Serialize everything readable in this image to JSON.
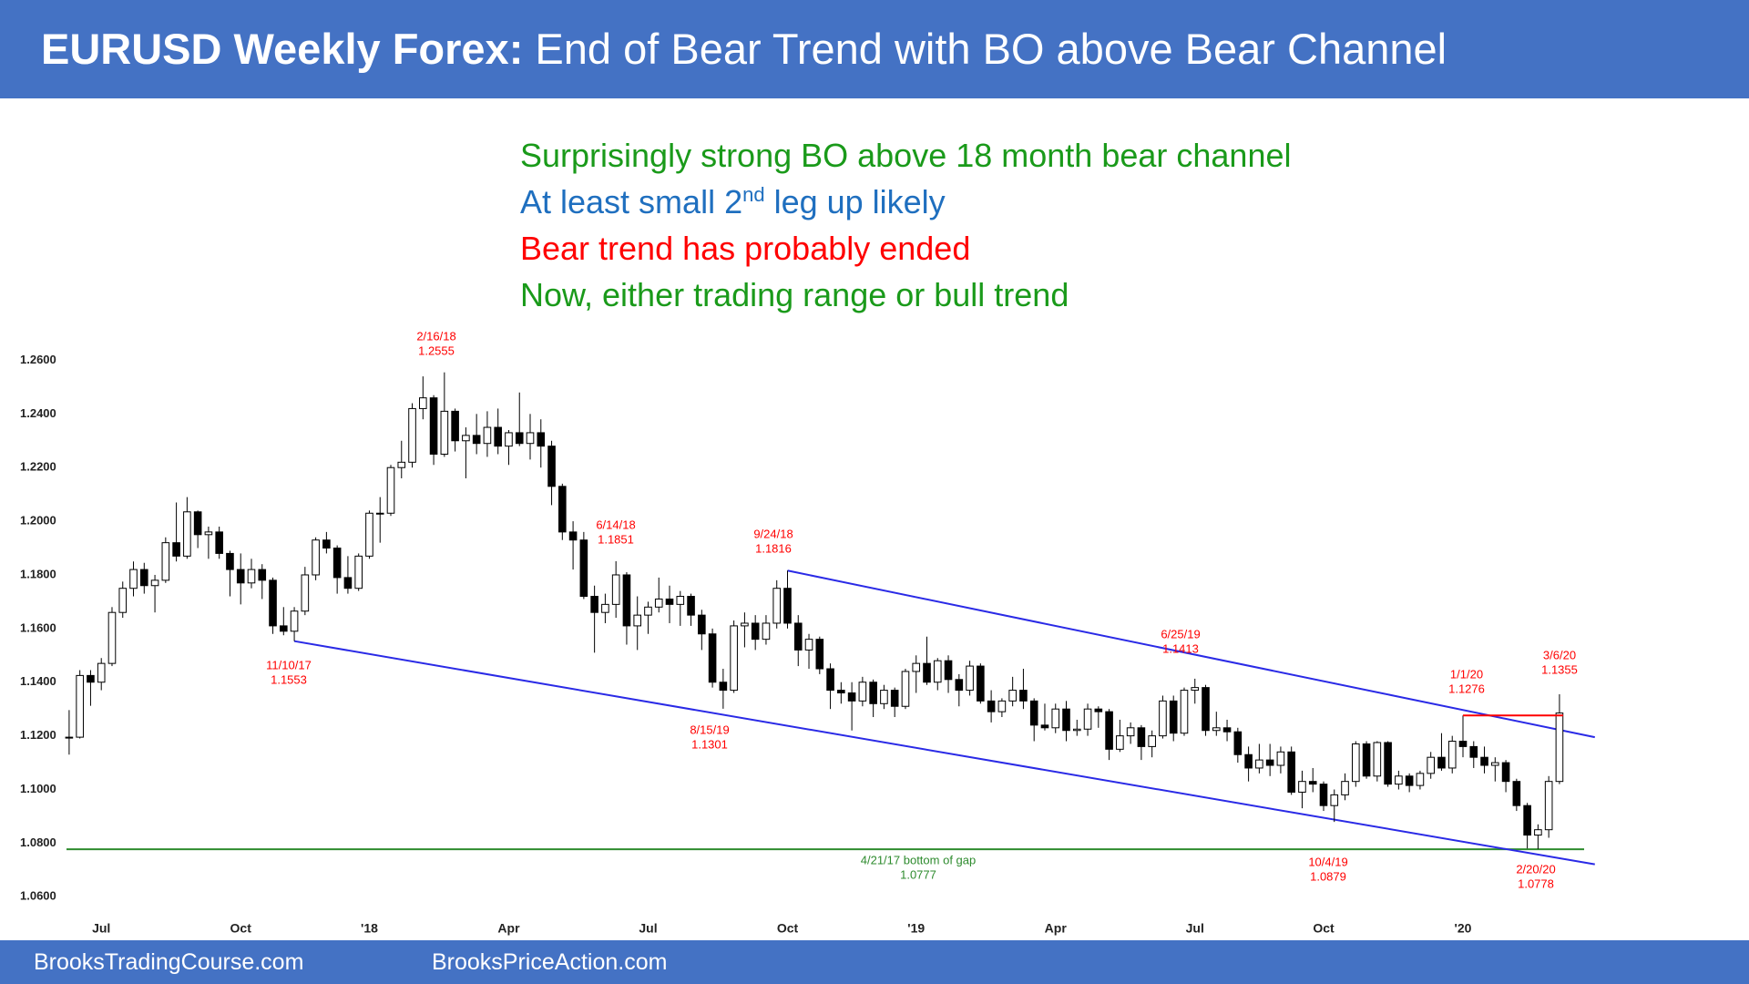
{
  "header": {
    "title_bold": "EURUSD Weekly Forex:",
    "title_rest": "End of Bear Trend with BO above Bear Channel"
  },
  "commentary": [
    {
      "parts": [
        "Surprisingly strong BO above 18 month bear channel"
      ],
      "color": "#1a9a1a"
    },
    {
      "parts": [
        "At least small 2",
        "nd",
        " leg up likely"
      ],
      "color": "#1f6fbf"
    },
    {
      "parts": [
        "Bear trend has probably ended"
      ],
      "color": "#ff0000"
    },
    {
      "parts": [
        "Now, either trading range or bull trend"
      ],
      "color": "#1a9a1a"
    }
  ],
  "chart_data": {
    "type": "candlestick",
    "categories": [
      null,
      null,
      null,
      "Jul",
      null,
      null,
      null,
      null,
      null,
      null,
      null,
      null,
      null,
      null,
      null,
      null,
      "Oct",
      null,
      null,
      null,
      null,
      null,
      null,
      null,
      null,
      null,
      null,
      null,
      "'18",
      null,
      null,
      null,
      null,
      null,
      null,
      null,
      null,
      null,
      null,
      null,
      null,
      "Apr",
      null,
      null,
      null,
      null,
      null,
      null,
      null,
      null,
      null,
      null,
      null,
      null,
      "Jul",
      null,
      null,
      null,
      null,
      null,
      null,
      null,
      null,
      null,
      null,
      null,
      null,
      "Oct",
      null,
      null,
      null,
      null,
      null,
      null,
      null,
      null,
      null,
      null,
      null,
      "'19",
      null,
      null,
      null,
      null,
      null,
      null,
      null,
      null,
      null,
      null,
      null,
      null,
      "Apr",
      null,
      null,
      null,
      null,
      null,
      null,
      null,
      null,
      null,
      null,
      null,
      null,
      "Jul",
      null,
      null,
      null,
      null,
      null,
      null,
      null,
      null,
      null,
      null,
      null,
      "Oct",
      null,
      null,
      null,
      null,
      null,
      null,
      null,
      null,
      null,
      null,
      null,
      null,
      "'20",
      null,
      null,
      null,
      null,
      null,
      null,
      null,
      null,
      null
    ],
    "candles": [
      [
        1.1195,
        1.1296,
        1.113,
        1.1195
      ],
      [
        1.1195,
        1.1445,
        1.119,
        1.1425
      ],
      [
        1.1425,
        1.1445,
        1.1312,
        1.14
      ],
      [
        1.14,
        1.149,
        1.137,
        1.147
      ],
      [
        1.147,
        1.168,
        1.146,
        1.166
      ],
      [
        1.166,
        1.1775,
        1.164,
        1.175
      ],
      [
        1.175,
        1.185,
        1.172,
        1.182
      ],
      [
        1.182,
        1.1845,
        1.173,
        1.176
      ],
      [
        1.176,
        1.18,
        1.166,
        1.178
      ],
      [
        1.178,
        1.194,
        1.177,
        1.192
      ],
      [
        1.192,
        1.207,
        1.185,
        1.187
      ],
      [
        1.187,
        1.209,
        1.186,
        1.2035
      ],
      [
        1.2035,
        1.204,
        1.19,
        1.195
      ],
      [
        1.195,
        1.198,
        1.186,
        1.196
      ],
      [
        1.196,
        1.198,
        1.186,
        1.188
      ],
      [
        1.188,
        1.189,
        1.172,
        1.182
      ],
      [
        1.182,
        1.188,
        1.169,
        1.177
      ],
      [
        1.177,
        1.186,
        1.175,
        1.182
      ],
      [
        1.182,
        1.184,
        1.171,
        1.178
      ],
      [
        1.178,
        1.179,
        1.158,
        1.161
      ],
      [
        1.161,
        1.168,
        1.1575,
        1.159
      ],
      [
        1.159,
        1.168,
        1.1553,
        1.1665
      ],
      [
        1.1665,
        1.183,
        1.165,
        1.18
      ],
      [
        1.18,
        1.194,
        1.178,
        1.193
      ],
      [
        1.193,
        1.196,
        1.188,
        1.19
      ],
      [
        1.19,
        1.191,
        1.173,
        1.179
      ],
      [
        1.179,
        1.187,
        1.173,
        1.175
      ],
      [
        1.175,
        1.188,
        1.174,
        1.187
      ],
      [
        1.187,
        1.204,
        1.186,
        1.203
      ],
      [
        1.203,
        1.209,
        1.192,
        1.203
      ],
      [
        1.203,
        1.221,
        1.202,
        1.22
      ],
      [
        1.22,
        1.23,
        1.216,
        1.222
      ],
      [
        1.222,
        1.244,
        1.22,
        1.242
      ],
      [
        1.242,
        1.254,
        1.238,
        1.246
      ],
      [
        1.246,
        1.247,
        1.221,
        1.225
      ],
      [
        1.225,
        1.2555,
        1.224,
        1.241
      ],
      [
        1.241,
        1.242,
        1.226,
        1.23
      ],
      [
        1.23,
        1.235,
        1.216,
        1.232
      ],
      [
        1.232,
        1.24,
        1.225,
        1.229
      ],
      [
        1.229,
        1.241,
        1.224,
        1.235
      ],
      [
        1.235,
        1.242,
        1.225,
        1.228
      ],
      [
        1.228,
        1.234,
        1.221,
        1.233
      ],
      [
        1.233,
        1.248,
        1.228,
        1.229
      ],
      [
        1.229,
        1.24,
        1.223,
        1.233
      ],
      [
        1.233,
        1.238,
        1.22,
        1.228
      ],
      [
        1.228,
        1.23,
        1.206,
        1.213
      ],
      [
        1.213,
        1.214,
        1.193,
        1.196
      ],
      [
        1.196,
        1.2,
        1.182,
        1.193
      ],
      [
        1.193,
        1.196,
        1.171,
        1.172
      ],
      [
        1.172,
        1.176,
        1.151,
        1.166
      ],
      [
        1.166,
        1.173,
        1.162,
        1.169
      ],
      [
        1.169,
        1.1851,
        1.164,
        1.18
      ],
      [
        1.18,
        1.181,
        1.154,
        1.161
      ],
      [
        1.161,
        1.172,
        1.152,
        1.165
      ],
      [
        1.165,
        1.17,
        1.158,
        1.168
      ],
      [
        1.168,
        1.179,
        1.166,
        1.171
      ],
      [
        1.171,
        1.176,
        1.162,
        1.169
      ],
      [
        1.169,
        1.174,
        1.161,
        1.172
      ],
      [
        1.172,
        1.173,
        1.161,
        1.165
      ],
      [
        1.165,
        1.167,
        1.152,
        1.158
      ],
      [
        1.158,
        1.16,
        1.138,
        1.14
      ],
      [
        1.14,
        1.145,
        1.1301,
        1.137
      ],
      [
        1.137,
        1.163,
        1.136,
        1.161
      ],
      [
        1.161,
        1.166,
        1.153,
        1.162
      ],
      [
        1.162,
        1.165,
        1.152,
        1.156
      ],
      [
        1.156,
        1.165,
        1.154,
        1.162
      ],
      [
        1.162,
        1.178,
        1.16,
        1.175
      ],
      [
        1.175,
        1.1816,
        1.16,
        1.162
      ],
      [
        1.162,
        1.165,
        1.146,
        1.152
      ],
      [
        1.152,
        1.158,
        1.145,
        1.156
      ],
      [
        1.156,
        1.157,
        1.143,
        1.145
      ],
      [
        1.145,
        1.147,
        1.13,
        1.137
      ],
      [
        1.137,
        1.14,
        1.132,
        1.136
      ],
      [
        1.136,
        1.14,
        1.122,
        1.133
      ],
      [
        1.133,
        1.142,
        1.131,
        1.14
      ],
      [
        1.14,
        1.141,
        1.127,
        1.132
      ],
      [
        1.132,
        1.139,
        1.13,
        1.137
      ],
      [
        1.137,
        1.138,
        1.127,
        1.131
      ],
      [
        1.131,
        1.145,
        1.13,
        1.144
      ],
      [
        1.144,
        1.15,
        1.136,
        1.147
      ],
      [
        1.147,
        1.157,
        1.139,
        1.14
      ],
      [
        1.14,
        1.149,
        1.137,
        1.148
      ],
      [
        1.148,
        1.15,
        1.136,
        1.141
      ],
      [
        1.141,
        1.143,
        1.131,
        1.137
      ],
      [
        1.137,
        1.148,
        1.135,
        1.146
      ],
      [
        1.146,
        1.147,
        1.132,
        1.133
      ],
      [
        1.133,
        1.137,
        1.125,
        1.129
      ],
      [
        1.129,
        1.134,
        1.127,
        1.133
      ],
      [
        1.133,
        1.142,
        1.131,
        1.137
      ],
      [
        1.137,
        1.145,
        1.13,
        1.133
      ],
      [
        1.133,
        1.134,
        1.118,
        1.124
      ],
      [
        1.124,
        1.132,
        1.122,
        1.123
      ],
      [
        1.123,
        1.132,
        1.121,
        1.13
      ],
      [
        1.13,
        1.133,
        1.118,
        1.122
      ],
      [
        1.122,
        1.126,
        1.12,
        1.1225
      ],
      [
        1.1225,
        1.132,
        1.12,
        1.13
      ],
      [
        1.13,
        1.131,
        1.123,
        1.129
      ],
      [
        1.129,
        1.13,
        1.111,
        1.115
      ],
      [
        1.115,
        1.126,
        1.114,
        1.12
      ],
      [
        1.12,
        1.125,
        1.117,
        1.123
      ],
      [
        1.123,
        1.124,
        1.111,
        1.116
      ],
      [
        1.116,
        1.122,
        1.112,
        1.12
      ],
      [
        1.12,
        1.135,
        1.119,
        1.133
      ],
      [
        1.133,
        1.135,
        1.118,
        1.121
      ],
      [
        1.121,
        1.138,
        1.12,
        1.137
      ],
      [
        1.137,
        1.1413,
        1.132,
        1.138
      ],
      [
        1.138,
        1.139,
        1.12,
        1.122
      ],
      [
        1.122,
        1.129,
        1.12,
        1.123
      ],
      [
        1.123,
        1.126,
        1.118,
        1.1215
      ],
      [
        1.1215,
        1.123,
        1.11,
        1.113
      ],
      [
        1.113,
        1.116,
        1.103,
        1.108
      ],
      [
        1.108,
        1.117,
        1.106,
        1.111
      ],
      [
        1.111,
        1.117,
        1.105,
        1.109
      ],
      [
        1.109,
        1.116,
        1.106,
        1.114
      ],
      [
        1.114,
        1.116,
        1.098,
        1.099
      ],
      [
        1.099,
        1.107,
        1.093,
        1.103
      ],
      [
        1.103,
        1.108,
        1.099,
        1.102
      ],
      [
        1.102,
        1.103,
        1.092,
        1.094
      ],
      [
        1.094,
        1.1,
        1.0879,
        1.098
      ],
      [
        1.098,
        1.106,
        1.096,
        1.103
      ],
      [
        1.103,
        1.118,
        1.101,
        1.117
      ],
      [
        1.117,
        1.118,
        1.104,
        1.105
      ],
      [
        1.105,
        1.118,
        1.103,
        1.1175
      ],
      [
        1.1175,
        1.118,
        1.101,
        1.102
      ],
      [
        1.102,
        1.107,
        1.1,
        1.105
      ],
      [
        1.105,
        1.106,
        1.099,
        1.1015
      ],
      [
        1.1015,
        1.107,
        1.1,
        1.106
      ],
      [
        1.106,
        1.114,
        1.104,
        1.112
      ],
      [
        1.112,
        1.121,
        1.107,
        1.108
      ],
      [
        1.108,
        1.12,
        1.106,
        1.118
      ],
      [
        1.118,
        1.1276,
        1.112,
        1.116
      ],
      [
        1.116,
        1.118,
        1.108,
        1.112
      ],
      [
        1.112,
        1.116,
        1.106,
        1.109
      ],
      [
        1.109,
        1.112,
        1.103,
        1.11
      ],
      [
        1.11,
        1.111,
        1.099,
        1.103
      ],
      [
        1.103,
        1.104,
        1.092,
        1.094
      ],
      [
        1.094,
        1.095,
        1.078,
        1.083
      ],
      [
        1.083,
        1.087,
        1.0778,
        1.085
      ],
      [
        1.085,
        1.105,
        1.082,
        1.103
      ],
      [
        1.103,
        1.1355,
        1.102,
        1.1285
      ]
    ],
    "color_up": "#ffffff",
    "color_down": "#000000",
    "ylim": [
      1.055,
      1.27
    ],
    "yticks": [
      {
        "value": 1.06,
        "label": "1.0600"
      },
      {
        "value": 1.08,
        "label": "1.0800"
      },
      {
        "value": 1.1,
        "label": "1.1000"
      },
      {
        "value": 1.12,
        "label": "1.1200"
      },
      {
        "value": 1.14,
        "label": "1.1400"
      },
      {
        "value": 1.16,
        "label": "1.1600"
      },
      {
        "value": 1.18,
        "label": "1.1800"
      },
      {
        "value": 1.2,
        "label": "1.2000"
      },
      {
        "value": 1.22,
        "label": "1.2200"
      },
      {
        "value": 1.24,
        "label": "1.2400"
      },
      {
        "value": 1.26,
        "label": "1.2600"
      }
    ],
    "annotations": [
      {
        "date": "2/16/18",
        "value": 1.2555
      },
      {
        "date": "6/14/18",
        "value": 1.1851
      },
      {
        "date": "9/24/18",
        "value": 1.1816
      },
      {
        "date": "11/10/17",
        "value": 1.1553
      },
      {
        "date": "8/15/19",
        "value": 1.1301
      },
      {
        "date": "6/25/19",
        "value": 1.1413
      },
      {
        "date": "1/1/20",
        "value": 1.1276
      },
      {
        "date": "3/6/20",
        "value": 1.1355
      },
      {
        "date": "10/4/19",
        "value": 1.0879
      },
      {
        "date": "2/20/20",
        "value": 1.0778
      }
    ],
    "annotation_color": "#ff0000",
    "gap_line": {
      "label": "4/21/17 bottom of gap",
      "value": 1.0777,
      "color": "#2e8b2e"
    },
    "bear_channel": {
      "color": "#2a2ae6",
      "upper": [
        1.1816,
        1.1195
      ],
      "lower": [
        1.1553,
        1.0721
      ]
    }
  },
  "footer": {
    "left": "BrooksTradingCourse.com",
    "right": "BrooksPriceAction.com"
  }
}
